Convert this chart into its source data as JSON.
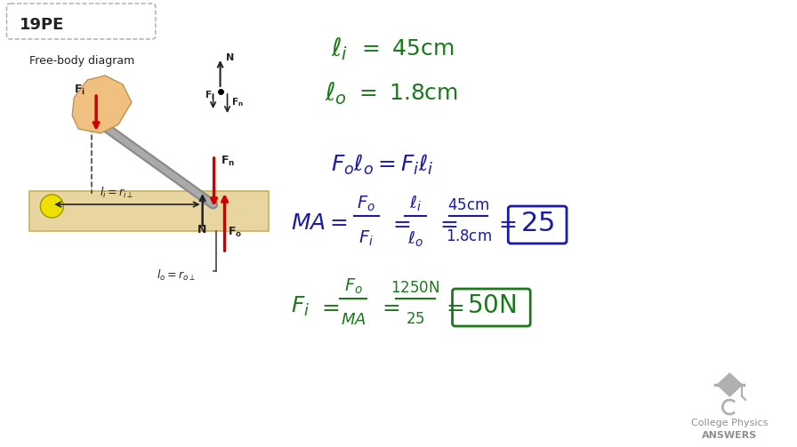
{
  "bg_color": "#ffffff",
  "problem_label": "19PE",
  "label_box_edge": "#aaaaaa",
  "free_body_label": "Free-body diagram",
  "ground_color": "#e8d5a0",
  "ground_edge": "#c8b060",
  "arrow_color_red": "#cc0000",
  "arrow_color_black": "#222222",
  "text_color_dark": "#222222",
  "text_color_green": "#1a7a1a",
  "text_color_blue": "#1a1aaa",
  "logo_text1": "College Physics",
  "logo_text2": "ANSWERS"
}
